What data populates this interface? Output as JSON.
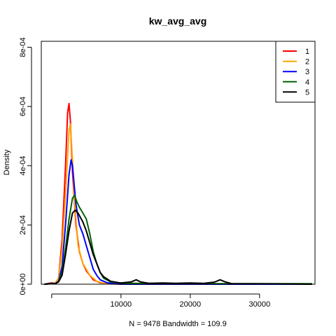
{
  "chart_data": {
    "type": "line",
    "title": "kw_avg_avg",
    "xlabel": "N = 9478   Bandwidth = 109.9",
    "ylabel": "Density",
    "xlim": [
      -1500,
      38000
    ],
    "ylim": [
      0,
      0.00082
    ],
    "x_ticks": [
      {
        "value": 10000,
        "label": "10000"
      },
      {
        "value": 20000,
        "label": "20000"
      },
      {
        "value": 30000,
        "label": "30000"
      }
    ],
    "y_ticks": [
      {
        "value": 0,
        "label": "0e+00"
      },
      {
        "value": 0.0002,
        "label": "2e-04"
      },
      {
        "value": 0.0004,
        "label": "4e-04"
      },
      {
        "value": 0.0006,
        "label": "6e-04"
      },
      {
        "value": 0.0008,
        "label": "8e-04"
      }
    ],
    "legend_position": "top-right",
    "grid": false,
    "series": [
      {
        "name": "1",
        "color": "#ff0000",
        "points": [
          [
            -1000,
            0
          ],
          [
            0,
            5e-06
          ],
          [
            500,
            3e-06
          ],
          [
            1000,
            2e-05
          ],
          [
            1500,
            0.00015
          ],
          [
            2000,
            0.0004
          ],
          [
            2300,
            0.00058
          ],
          [
            2500,
            0.00061
          ],
          [
            2700,
            0.00055
          ],
          [
            3000,
            0.00038
          ],
          [
            3500,
            0.0002
          ],
          [
            4000,
            0.00011
          ],
          [
            4500,
            7e-05
          ],
          [
            5000,
            4.5e-05
          ],
          [
            5500,
            3e-05
          ],
          [
            6000,
            1.5e-05
          ],
          [
            7000,
            5e-06
          ],
          [
            8000,
            2e-06
          ],
          [
            10000,
            0
          ],
          [
            37500,
            0
          ]
        ]
      },
      {
        "name": "2",
        "color": "#ffa500",
        "points": [
          [
            -1000,
            0
          ],
          [
            0,
            4e-06
          ],
          [
            500,
            3e-06
          ],
          [
            1000,
            2e-05
          ],
          [
            1500,
            0.00012
          ],
          [
            2000,
            0.0003
          ],
          [
            2500,
            0.00052
          ],
          [
            2700,
            0.00054
          ],
          [
            3000,
            0.00042
          ],
          [
            3300,
            0.00028
          ],
          [
            3800,
            0.00013
          ],
          [
            4500,
            7e-05
          ],
          [
            5000,
            5e-05
          ],
          [
            5500,
            3e-05
          ],
          [
            6500,
            1e-05
          ],
          [
            7500,
            3e-06
          ],
          [
            9000,
            1e-06
          ],
          [
            10000,
            0
          ],
          [
            37500,
            0
          ]
        ]
      },
      {
        "name": "3",
        "color": "#0000ff",
        "points": [
          [
            -1000,
            0
          ],
          [
            0,
            3e-06
          ],
          [
            500,
            2e-06
          ],
          [
            1000,
            1e-05
          ],
          [
            1500,
            6e-05
          ],
          [
            2000,
            0.0002
          ],
          [
            2500,
            0.00037
          ],
          [
            2800,
            0.00042
          ],
          [
            3000,
            0.0004
          ],
          [
            3500,
            0.00027
          ],
          [
            4000,
            0.0002
          ],
          [
            4500,
            0.00017
          ],
          [
            5000,
            0.00013
          ],
          [
            5500,
            9e-05
          ],
          [
            6000,
            5e-05
          ],
          [
            6500,
            3e-05
          ],
          [
            7000,
            1.5e-05
          ],
          [
            8000,
            5e-06
          ],
          [
            9000,
            2e-06
          ],
          [
            10000,
            0
          ],
          [
            37500,
            0
          ]
        ]
      },
      {
        "name": "4",
        "color": "#006400",
        "points": [
          [
            -1000,
            0
          ],
          [
            0,
            2e-06
          ],
          [
            500,
            2e-06
          ],
          [
            1000,
            8e-06
          ],
          [
            1500,
            4e-05
          ],
          [
            2000,
            0.00012
          ],
          [
            2500,
            0.00022
          ],
          [
            3000,
            0.00029
          ],
          [
            3300,
            0.0003
          ],
          [
            3600,
            0.00028
          ],
          [
            4000,
            0.00026
          ],
          [
            4500,
            0.00024
          ],
          [
            5000,
            0.00022
          ],
          [
            5500,
            0.00017
          ],
          [
            6000,
            0.00011
          ],
          [
            6500,
            7e-05
          ],
          [
            7000,
            4e-05
          ],
          [
            7500,
            2e-05
          ],
          [
            8500,
            8e-06
          ],
          [
            10000,
            4e-06
          ],
          [
            12000,
            3e-06
          ],
          [
            20000,
            2e-06
          ],
          [
            30000,
            2e-06
          ],
          [
            37500,
            2e-06
          ]
        ]
      },
      {
        "name": "5",
        "color": "#000000",
        "points": [
          [
            -1000,
            0
          ],
          [
            0,
            2e-06
          ],
          [
            500,
            2e-06
          ],
          [
            1000,
            8e-06
          ],
          [
            1500,
            3e-05
          ],
          [
            2000,
            0.0001
          ],
          [
            2500,
            0.00018
          ],
          [
            3000,
            0.00024
          ],
          [
            3400,
            0.00025
          ],
          [
            3800,
            0.00024
          ],
          [
            4500,
            0.00021
          ],
          [
            5000,
            0.00018
          ],
          [
            5500,
            0.00014
          ],
          [
            6000,
            0.0001
          ],
          [
            6500,
            7e-05
          ],
          [
            7000,
            4e-05
          ],
          [
            7500,
            2.5e-05
          ],
          [
            8500,
            1e-05
          ],
          [
            10000,
            4e-06
          ],
          [
            11500,
            8e-06
          ],
          [
            12200,
            1.5e-05
          ],
          [
            12800,
            8e-06
          ],
          [
            14000,
            3e-06
          ],
          [
            16000,
            4e-06
          ],
          [
            18000,
            3e-06
          ],
          [
            20000,
            4e-06
          ],
          [
            22000,
            3e-06
          ],
          [
            23500,
            7e-06
          ],
          [
            24300,
            1.5e-05
          ],
          [
            25000,
            8e-06
          ],
          [
            26000,
            2e-06
          ],
          [
            37500,
            0
          ]
        ]
      }
    ]
  }
}
